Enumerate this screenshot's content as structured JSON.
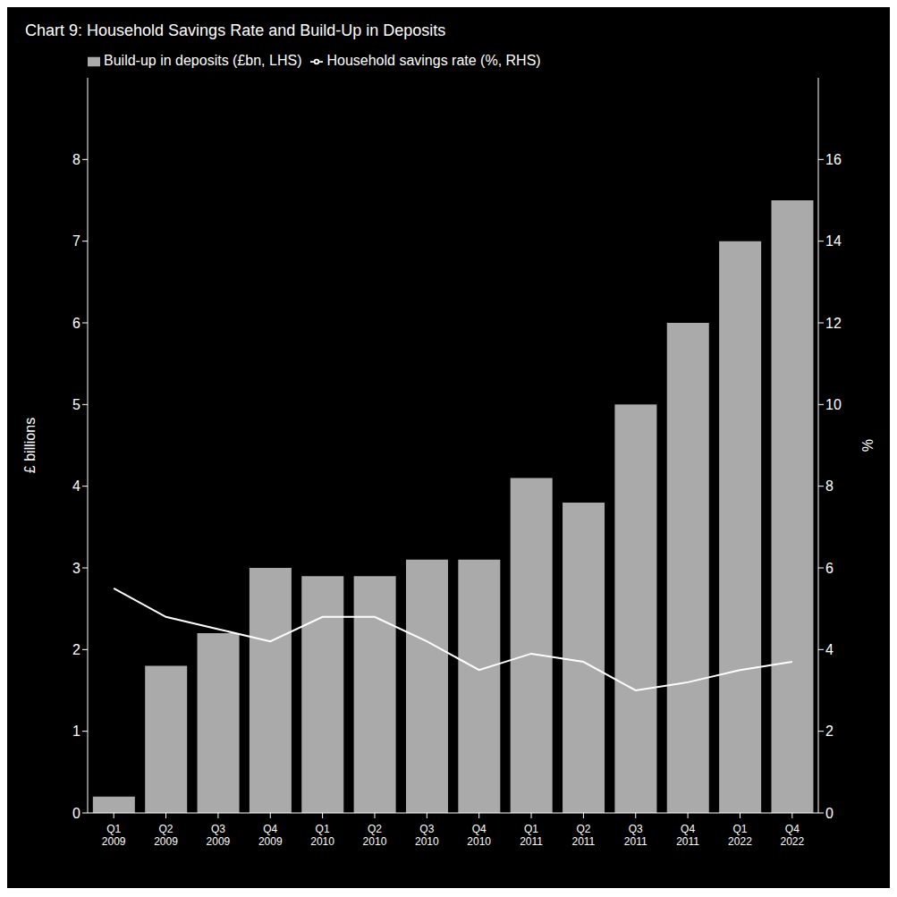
{
  "chart_data": {
    "type": "bar",
    "title": "Chart 9: Household Savings Rate and Build-Up in Deposits",
    "categories": [
      "Q1\n2009",
      "Q2\n2009",
      "Q3\n2009",
      "Q4\n2009",
      "Q1\n2010",
      "Q2\n2010",
      "Q3\n2010",
      "Q4\n2010",
      "Q1\n2011",
      "Q2\n2011",
      "Q3\n2011",
      "Q4\n2011",
      "Q1\n2022",
      "Q4\n2022"
    ],
    "series": [
      {
        "name": "Build-up in deposits (£bn, LHS)",
        "type": "bar",
        "color": "#aaaaaa",
        "values": [
          0.2,
          1.8,
          2.2,
          3.0,
          2.9,
          2.9,
          3.1,
          3.1,
          4.1,
          3.8,
          5.0,
          6.0,
          7.0,
          7.5
        ]
      },
      {
        "name": "Household savings rate (%, RHS)",
        "type": "line",
        "color": "#ffffff",
        "axis": "y2",
        "values": [
          5.5,
          4.8,
          4.5,
          4.2,
          4.8,
          4.8,
          4.2,
          3.5,
          3.9,
          3.7,
          3.0,
          3.2,
          3.5,
          3.7
        ]
      }
    ],
    "ylabel": "£ billions",
    "y2label": "%",
    "ylim": [
      0,
      9
    ],
    "yticks": [
      0,
      1,
      2,
      3,
      4,
      5,
      6,
      7,
      8
    ],
    "y2lim": [
      0,
      18
    ],
    "y2ticks": [
      0,
      2,
      4,
      6,
      8,
      10,
      12,
      14,
      16
    ],
    "legend": "upper left",
    "grid": false
  }
}
